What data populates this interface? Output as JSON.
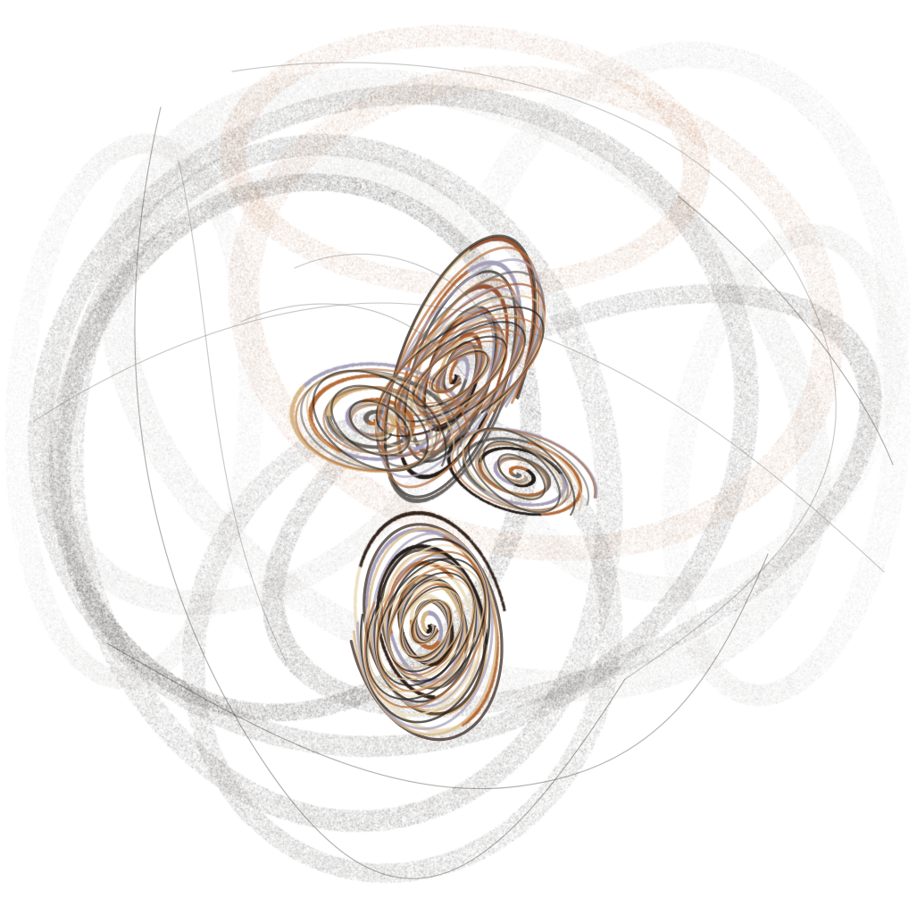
{
  "image": {
    "subject": "strange-attractor",
    "background_color": "#ffffff",
    "palette": {
      "ink": "#2a2420",
      "grey": "#6e6a66",
      "light_grey": "#b9b5b1",
      "copper": "#b8703e",
      "rust": "#9c5a3a",
      "tan": "#d9b98a",
      "cream": "#efe3c4",
      "lavender": "#a9a3bd",
      "dark_brown": "#3b2a22"
    }
  }
}
